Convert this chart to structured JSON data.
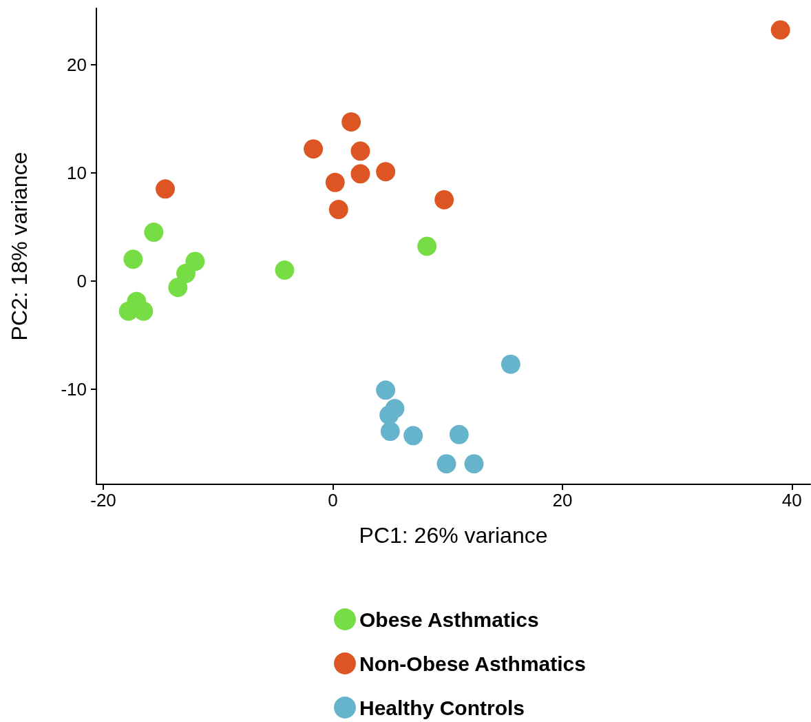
{
  "chart_data": {
    "type": "scatter",
    "xlabel": "PC1: 26% variance",
    "ylabel": "PC2: 18% variance",
    "xlim": [
      -20.6,
      41.6
    ],
    "xticks": [
      -20,
      0,
      20,
      40
    ],
    "ylim": [
      -18.8,
      25.2
    ],
    "yticks": [
      -10,
      0,
      10,
      20
    ],
    "grid": false,
    "legend": "bottom",
    "marker": "circle",
    "series": [
      {
        "name": "Obese Asthmatics",
        "color": "#77dd44",
        "x": [
          -17.4,
          -15.6,
          -12.0,
          -12.8,
          -13.5,
          -17.1,
          -17.8,
          -16.5,
          -4.2,
          8.2
        ],
        "values": [
          2.0,
          4.5,
          1.8,
          0.7,
          -0.6,
          -1.9,
          -2.8,
          -2.8,
          1.0,
          3.2
        ]
      },
      {
        "name": "Non-Obese Asthmatics",
        "color": "#dd5522",
        "x": [
          -14.6,
          -1.7,
          1.6,
          2.4,
          0.2,
          0.5,
          2.4,
          4.6,
          9.7,
          39.0
        ],
        "values": [
          8.5,
          12.2,
          14.7,
          12.0,
          9.1,
          6.6,
          9.9,
          10.1,
          7.5,
          23.2
        ]
      },
      {
        "name": "Healthy Controls",
        "color": "#66b3cc",
        "x": [
          15.5,
          4.6,
          4.9,
          5.4,
          5.0,
          7.0,
          11.0,
          9.9,
          12.3
        ],
        "values": [
          -7.7,
          -10.1,
          -12.4,
          -11.8,
          -13.9,
          -14.3,
          -14.2,
          -16.9,
          -16.9
        ]
      }
    ]
  }
}
